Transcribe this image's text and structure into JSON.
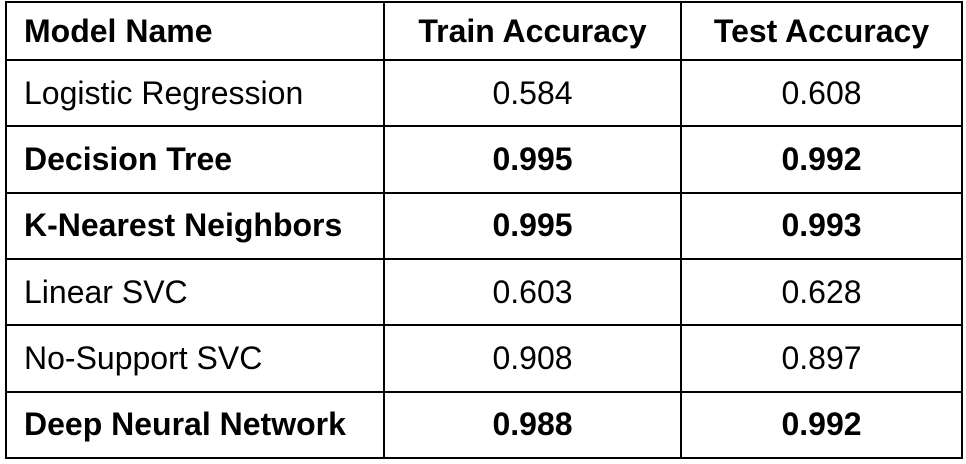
{
  "table": {
    "headers": [
      "Model Name",
      "Train Accuracy",
      "Test Accuracy"
    ],
    "rows": [
      {
        "model": "Logistic Regression",
        "train": "0.584",
        "test": "0.608",
        "bold": false
      },
      {
        "model": "Decision Tree",
        "train": "0.995",
        "test": "0.992",
        "bold": true
      },
      {
        "model": "K-Nearest Neighbors",
        "train": "0.995",
        "test": "0.993",
        "bold": true
      },
      {
        "model": "Linear SVC",
        "train": "0.603",
        "test": "0.628",
        "bold": false
      },
      {
        "model": "No-Support SVC",
        "train": "0.908",
        "test": "0.897",
        "bold": false
      },
      {
        "model": "Deep Neural Network",
        "train": "0.988",
        "test": "0.992",
        "bold": true
      }
    ]
  }
}
